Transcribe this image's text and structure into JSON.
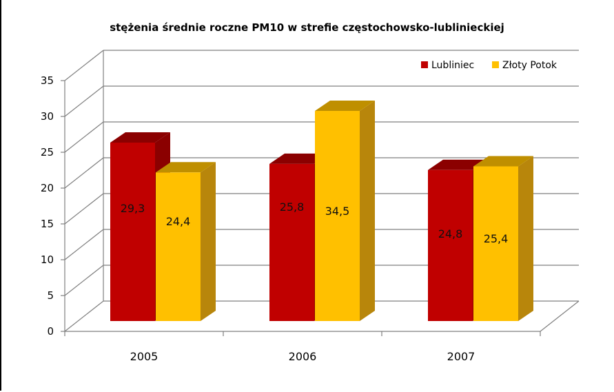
{
  "chart_data": {
    "type": "bar",
    "title": "stężenia średnie roczne PM10 w strefie częstochowsko-lublinieckiej",
    "categories": [
      "2005",
      "2006",
      "2007"
    ],
    "series": [
      {
        "name": "Lubliniec",
        "values": [
          29.3,
          25.8,
          24.8
        ],
        "labels": [
          "29,3",
          "25,8",
          "24,8"
        ],
        "color": "#C00000",
        "top_color": "#8B0000",
        "side_color": "#8B0000"
      },
      {
        "name": "Złoty Potok",
        "values": [
          24.4,
          34.5,
          25.4
        ],
        "labels": [
          "24,4",
          "34,5",
          "25,4"
        ],
        "color": "#FFC000",
        "top_color": "#BF8F00",
        "side_color": "#B8860B"
      }
    ],
    "ylim": [
      0,
      35
    ],
    "yticks": [
      "0",
      "5",
      "10",
      "15",
      "20",
      "25",
      "30",
      "35"
    ],
    "xlabel": "",
    "ylabel": "",
    "grid": true,
    "style": "3d-clustered-column",
    "legend_position": "top-right"
  }
}
